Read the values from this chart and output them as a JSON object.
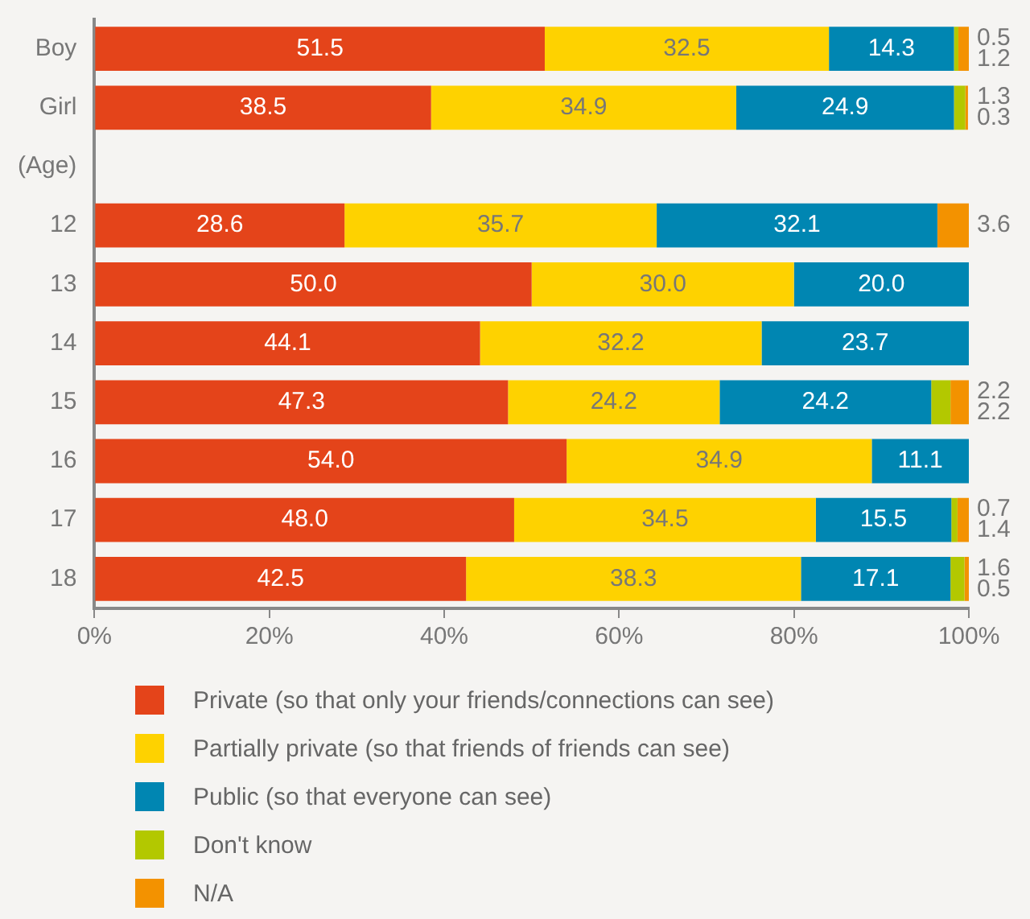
{
  "chart_data": {
    "type": "bar",
    "orientation": "horizontal",
    "stacked": true,
    "categories": [
      "Boy",
      "Girl",
      "(Age)",
      "12",
      "13",
      "14",
      "15",
      "16",
      "17",
      "18"
    ],
    "series": [
      {
        "name": "Private (so that only your friends/connections can see)",
        "color": "#e4441a",
        "values": [
          51.5,
          38.5,
          null,
          28.6,
          50.0,
          44.1,
          47.3,
          54.0,
          48.0,
          42.5
        ],
        "value_labels": [
          "51.5",
          "38.5",
          null,
          "28.6",
          "50.0",
          "44.1",
          "47.3",
          "54.0",
          "48.0",
          "42.5"
        ]
      },
      {
        "name": "Partially private (so that friends of friends can see)",
        "color": "#fed200",
        "values": [
          32.5,
          34.9,
          null,
          35.7,
          30.0,
          32.2,
          24.2,
          34.9,
          34.5,
          38.3
        ],
        "value_labels": [
          "32.5",
          "34.9",
          null,
          "35.7",
          "30.0",
          "32.2",
          "24.2",
          "34.9",
          "34.5",
          "38.3"
        ]
      },
      {
        "name": "Public (so that everyone can see)",
        "color": "#0086b2",
        "values": [
          14.3,
          24.9,
          null,
          32.1,
          20.0,
          23.7,
          24.2,
          11.1,
          15.5,
          17.1
        ],
        "value_labels": [
          "14.3",
          "24.9",
          null,
          "32.1",
          "20.0",
          "23.7",
          "24.2",
          "11.1",
          "15.5",
          "17.1"
        ]
      },
      {
        "name": "Don't know",
        "color": "#b3c800",
        "values": [
          0.5,
          1.3,
          null,
          0,
          0,
          0,
          2.2,
          0,
          0.7,
          1.6
        ],
        "value_labels": [
          "0.5",
          "1.3",
          null,
          null,
          null,
          null,
          "2.2",
          null,
          "0.7",
          "1.6"
        ]
      },
      {
        "name": "N/A",
        "color": "#f39200",
        "values": [
          1.2,
          0.3,
          null,
          3.6,
          0,
          0,
          2.2,
          0,
          1.4,
          0.5
        ],
        "value_labels": [
          "1.2",
          "0.3",
          null,
          "3.6",
          null,
          null,
          "2.2",
          null,
          "1.4",
          "0.5"
        ]
      }
    ],
    "xlim": [
      0,
      100
    ],
    "xticks": [
      {
        "value": 0,
        "label": "0%"
      },
      {
        "value": 20,
        "label": "20%"
      },
      {
        "value": 40,
        "label": "40%"
      },
      {
        "value": 60,
        "label": "60%"
      },
      {
        "value": 80,
        "label": "80%"
      },
      {
        "value": 100,
        "label": "100%"
      }
    ],
    "grid": false,
    "legend": "bottom"
  }
}
